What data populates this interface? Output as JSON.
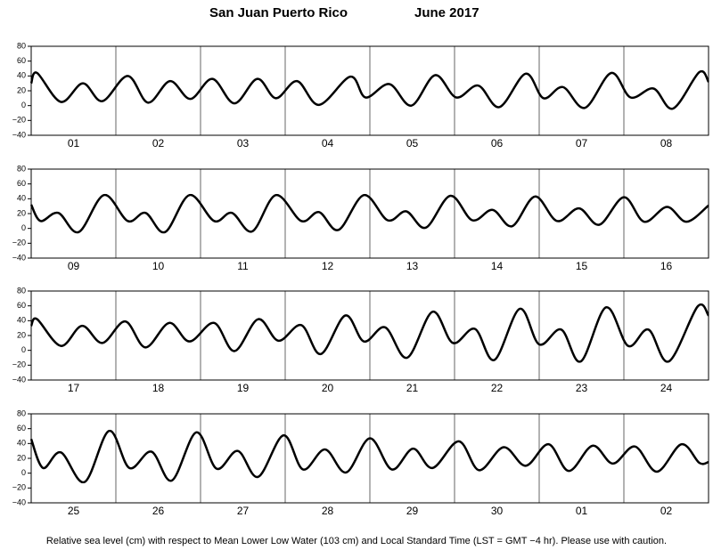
{
  "header": {
    "title": "San Juan Puerto Rico",
    "date": "June   2017"
  },
  "note": "Relative sea level (cm) with respect to Mean Lower Low Water (103 cm) and Local Standard Time (LST = GMT −4 hr). Please use with caution.",
  "chart_data": [
    {
      "type": "line",
      "categories": [
        "01",
        "02",
        "03",
        "04",
        "05",
        "06",
        "07",
        "08"
      ],
      "xlim": [
        0,
        8
      ],
      "ylim": [
        -40,
        80
      ],
      "yticks": [
        {
          "value": -40,
          "label": "−40"
        },
        {
          "value": -20,
          "label": "−20"
        },
        0,
        20,
        40,
        60,
        80
      ],
      "color": "#000000",
      "x": [
        0,
        0.07,
        0.35,
        0.61,
        0.84,
        1.14,
        1.38,
        1.64,
        1.88,
        2.14,
        2.4,
        2.67,
        2.89,
        3.14,
        3.4,
        3.77,
        3.95,
        4.23,
        4.49,
        4.77,
        5.02,
        5.28,
        5.53,
        5.84,
        6.05,
        6.28,
        6.54,
        6.85,
        7.08,
        7.35,
        7.58,
        7.89,
        8
      ],
      "values": [
        30,
        44,
        5,
        30,
        6,
        40,
        4,
        33,
        9,
        36,
        3,
        36,
        10,
        33,
        1,
        39,
        11,
        29,
        0,
        41,
        11,
        27,
        -2,
        43,
        10,
        25,
        -3,
        44,
        11,
        23,
        -4,
        45,
        32
      ]
    },
    {
      "type": "line",
      "categories": [
        "09",
        "10",
        "11",
        "12",
        "13",
        "14",
        "15",
        "16"
      ],
      "xlim": [
        0,
        8
      ],
      "ylim": [
        -40,
        80
      ],
      "yticks": [
        {
          "value": -40,
          "label": "−40"
        },
        {
          "value": -20,
          "label": "−20"
        },
        0,
        20,
        40,
        60,
        80
      ],
      "color": "#000000",
      "x": [
        0,
        0.11,
        0.32,
        0.56,
        0.86,
        1.14,
        1.35,
        1.58,
        1.87,
        2.16,
        2.37,
        2.61,
        2.89,
        3.19,
        3.4,
        3.63,
        3.93,
        4.21,
        4.43,
        4.66,
        4.95,
        5.21,
        5.45,
        5.68,
        5.95,
        6.21,
        6.47,
        6.71,
        7.0,
        7.24,
        7.51,
        7.74,
        8
      ],
      "values": [
        32,
        10,
        21,
        -5,
        45,
        10,
        21,
        -5,
        45,
        10,
        21,
        -4,
        45,
        10,
        22,
        -2,
        45,
        11,
        23,
        1,
        44,
        11,
        25,
        3,
        43,
        10,
        27,
        5,
        42,
        9,
        29,
        9,
        31
      ]
    },
    {
      "type": "line",
      "categories": [
        "17",
        "18",
        "19",
        "20",
        "21",
        "22",
        "23",
        "24"
      ],
      "xlim": [
        0,
        8
      ],
      "ylim": [
        -40,
        80
      ],
      "yticks": [
        {
          "value": -40,
          "label": "−40"
        },
        {
          "value": -20,
          "label": "−20"
        },
        0,
        20,
        40,
        60,
        80
      ],
      "color": "#000000",
      "x": [
        0,
        0.07,
        0.35,
        0.6,
        0.84,
        1.11,
        1.35,
        1.63,
        1.87,
        2.16,
        2.4,
        2.68,
        2.92,
        3.19,
        3.42,
        3.71,
        3.93,
        4.18,
        4.44,
        4.74,
        4.98,
        5.24,
        5.47,
        5.77,
        6.0,
        6.26,
        6.49,
        6.79,
        7.05,
        7.29,
        7.53,
        7.87,
        8
      ],
      "values": [
        33,
        42,
        6,
        33,
        10,
        39,
        4,
        37,
        12,
        37,
        -1,
        42,
        13,
        34,
        -5,
        47,
        12,
        31,
        -10,
        52,
        10,
        29,
        -13,
        56,
        8,
        28,
        -15,
        58,
        6,
        28,
        -15,
        59,
        47
      ]
    },
    {
      "type": "line",
      "categories": [
        "25",
        "26",
        "27",
        "28",
        "29",
        "30",
        "01",
        "02"
      ],
      "xlim": [
        0,
        8
      ],
      "ylim": [
        -40,
        80
      ],
      "yticks": [
        {
          "value": -40,
          "label": "−40"
        },
        {
          "value": -20,
          "label": "−20"
        },
        0,
        20,
        40,
        60,
        80
      ],
      "color": "#000000",
      "x": [
        0,
        0.14,
        0.35,
        0.63,
        0.92,
        1.16,
        1.42,
        1.66,
        1.95,
        2.19,
        2.44,
        2.68,
        2.98,
        3.21,
        3.47,
        3.72,
        4.0,
        4.26,
        4.51,
        4.74,
        5.05,
        5.29,
        5.58,
        5.84,
        6.11,
        6.35,
        6.63,
        6.87,
        7.13,
        7.39,
        7.68,
        7.89,
        8
      ],
      "values": [
        46,
        7,
        28,
        -12,
        57,
        7,
        29,
        -10,
        55,
        6,
        30,
        -5,
        51,
        5,
        32,
        1,
        47,
        5,
        33,
        7,
        43,
        4,
        35,
        10,
        39,
        3,
        37,
        13,
        36,
        2,
        39,
        14,
        15
      ]
    }
  ]
}
